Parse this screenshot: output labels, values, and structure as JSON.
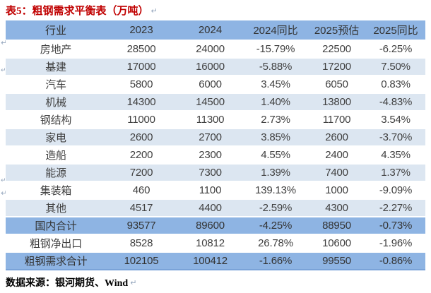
{
  "title": {
    "text": "表5：粗钢需求平衡表（万吨）"
  },
  "table": {
    "columns": [
      "行业",
      "2023",
      "2024",
      "2024同比",
      "2025预估",
      "2025同比"
    ],
    "rows": [
      {
        "variant": "plain",
        "cells": [
          "房地产",
          "28500",
          "24000",
          "-15.79%",
          "22500",
          "-6.25%"
        ]
      },
      {
        "variant": "stripe",
        "cells": [
          "基建",
          "17000",
          "16000",
          "-5.88%",
          "17200",
          "7.50%"
        ]
      },
      {
        "variant": "plain",
        "cells": [
          "汽车",
          "5800",
          "6000",
          "3.45%",
          "6050",
          "0.83%"
        ]
      },
      {
        "variant": "stripe",
        "cells": [
          "机械",
          "14300",
          "14500",
          "1.40%",
          "13800",
          "-4.83%"
        ]
      },
      {
        "variant": "plain",
        "cells": [
          "钢结构",
          "11000",
          "11300",
          "2.73%",
          "11700",
          "3.54%"
        ]
      },
      {
        "variant": "stripe",
        "cells": [
          "家电",
          "2600",
          "2700",
          "3.85%",
          "2600",
          "-3.70%"
        ]
      },
      {
        "variant": "plain",
        "cells": [
          "造船",
          "2200",
          "2300",
          "4.55%",
          "2400",
          "4.35%"
        ]
      },
      {
        "variant": "stripe",
        "cells": [
          "能源",
          "7200",
          "7300",
          "1.39%",
          "7400",
          "1.37%"
        ]
      },
      {
        "variant": "plain",
        "cells": [
          "集装箱",
          "460",
          "1100",
          "139.13%",
          "1000",
          "-9.09%"
        ]
      },
      {
        "variant": "stripe",
        "cells": [
          "其他",
          "4517",
          "4400",
          "-2.59%",
          "4300",
          "-2.27%"
        ]
      },
      {
        "variant": "total",
        "cells": [
          "国内合计",
          "93577",
          "89600",
          "-4.25%",
          "88950",
          "-0.73%"
        ]
      },
      {
        "variant": "plain",
        "cells": [
          "粗钢净出口",
          "8528",
          "10812",
          "26.78%",
          "10600",
          "-1.96%"
        ]
      },
      {
        "variant": "total",
        "cells": [
          "粗钢需求合计",
          "102105",
          "100412",
          "-1.66%",
          "99550",
          "-0.86%"
        ]
      }
    ]
  },
  "source": {
    "text": "数据来源：银河期货、Wind"
  },
  "marks": {
    "glyph": "↵"
  },
  "colors": {
    "title_red": "#C00000",
    "header_bg": "#8EB4E3",
    "stripe_bg": "#DCE6F1",
    "total_bg": "#8EB4E3",
    "table_text": "#404040",
    "bottom_border": "#7AA3D8",
    "mark_gray": "#93A5BC"
  }
}
